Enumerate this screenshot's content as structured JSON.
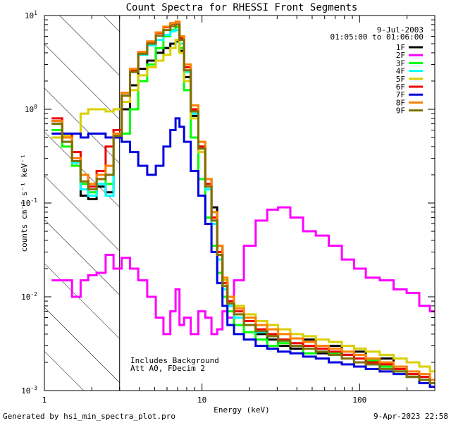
{
  "chart_data": {
    "type": "line",
    "title": "Count Spectra for RHESSI Front Segments",
    "xlabel": "Energy (keV)",
    "ylabel": "counts cm⁻² s⁻¹ keV⁻¹",
    "xscale": "log",
    "yscale": "log",
    "xlim": [
      1,
      300
    ],
    "ylim": [
      0.001,
      10
    ],
    "x_ticks": [
      {
        "value": 1,
        "label": "1"
      },
      {
        "value": 10,
        "label": "10"
      },
      {
        "value": 100,
        "label": "100"
      }
    ],
    "y_ticks": [
      {
        "value": 0.001,
        "base": "10",
        "exp": "-3"
      },
      {
        "value": 0.01,
        "base": "10",
        "exp": "-2"
      },
      {
        "value": 0.1,
        "base": "10",
        "exp": "-1"
      },
      {
        "value": 1,
        "base": "10",
        "exp": "0"
      },
      {
        "value": 10,
        "base": "10",
        "exp": "1"
      }
    ],
    "shaded_region": {
      "x_from": 1,
      "x_to": 3,
      "style": "diagonal-hatch"
    },
    "date": "9-Jul-2003",
    "time_range": "01:05:00 to 01:06:00",
    "annotations": [
      "Includes Background",
      "Att A0, FDecim 2"
    ],
    "series": [
      {
        "name": "1F",
        "color": "#000000",
        "x": [
          1.2,
          1.4,
          1.6,
          1.8,
          2.0,
          2.3,
          2.6,
          2.9,
          3.3,
          3.7,
          4.2,
          4.8,
          5.4,
          6.0,
          6.6,
          7.0,
          7.4,
          8.0,
          9.0,
          10.0,
          11.0,
          12.0,
          13.0,
          14.0,
          15.0,
          17.0,
          20.0,
          24.0,
          28.0,
          33.0,
          40.0,
          48.0,
          58.0,
          70.0,
          85.0,
          100.0,
          120.0,
          150.0,
          180.0,
          220.0,
          260.0,
          300.0
        ],
        "y": [
          0.75,
          0.5,
          0.3,
          0.12,
          0.11,
          0.15,
          0.13,
          0.5,
          1.0,
          1.8,
          2.7,
          3.3,
          4.0,
          4.5,
          5.0,
          5.3,
          4.2,
          2.2,
          0.85,
          0.4,
          0.18,
          0.09,
          0.035,
          0.015,
          0.008,
          0.006,
          0.005,
          0.004,
          0.0035,
          0.003,
          0.0028,
          0.0035,
          0.0025,
          0.003,
          0.0024,
          0.0026,
          0.002,
          0.0022,
          0.0018,
          0.0015,
          0.0013,
          0.0012
        ]
      },
      {
        "name": "2F",
        "color": "#ff00ff",
        "x": [
          1.2,
          1.4,
          1.6,
          1.8,
          2.0,
          2.3,
          2.6,
          2.9,
          3.3,
          3.7,
          4.2,
          4.8,
          5.4,
          6.0,
          6.6,
          7.0,
          7.4,
          8.0,
          9.0,
          10.0,
          11.0,
          12.0,
          13.0,
          14.0,
          15.0,
          17.0,
          20.0,
          24.0,
          28.0,
          33.0,
          40.0,
          48.0,
          58.0,
          70.0,
          85.0,
          100.0,
          120.0,
          150.0,
          180.0,
          220.0,
          260.0,
          300.0
        ],
        "y": [
          0.015,
          0.015,
          0.01,
          0.015,
          0.017,
          0.018,
          0.028,
          0.02,
          0.026,
          0.02,
          0.015,
          0.01,
          0.006,
          0.004,
          0.007,
          0.012,
          0.005,
          0.006,
          0.004,
          0.007,
          0.006,
          0.004,
          0.0045,
          0.007,
          0.006,
          0.015,
          0.035,
          0.065,
          0.085,
          0.09,
          0.07,
          0.05,
          0.045,
          0.035,
          0.025,
          0.02,
          0.016,
          0.015,
          0.012,
          0.011,
          0.008,
          0.007
        ]
      },
      {
        "name": "3F",
        "color": "#00ff00",
        "x": [
          1.2,
          1.4,
          1.6,
          1.8,
          2.0,
          2.3,
          2.6,
          2.9,
          3.3,
          3.7,
          4.2,
          4.8,
          5.4,
          6.0,
          6.6,
          7.0,
          7.4,
          8.0,
          9.0,
          10.0,
          11.0,
          12.0,
          13.0,
          14.0,
          15.0,
          17.0,
          20.0,
          24.0,
          28.0,
          33.0,
          40.0,
          48.0,
          58.0,
          70.0,
          85.0,
          100.0,
          120.0,
          150.0,
          180.0,
          220.0,
          260.0,
          300.0
        ],
        "y": [
          0.6,
          0.4,
          0.25,
          0.16,
          0.13,
          0.18,
          0.16,
          0.55,
          0.55,
          1.0,
          2.0,
          3.0,
          4.5,
          6.0,
          7.0,
          7.5,
          4.5,
          1.6,
          0.5,
          0.18,
          0.07,
          0.035,
          0.018,
          0.01,
          0.007,
          0.005,
          0.0042,
          0.0035,
          0.003,
          0.0032,
          0.003,
          0.0025,
          0.0028,
          0.0025,
          0.0022,
          0.002,
          0.0021,
          0.0018,
          0.0016,
          0.0015,
          0.0013,
          0.0012
        ]
      },
      {
        "name": "4F",
        "color": "#00ffff",
        "x": [
          1.2,
          1.4,
          1.6,
          1.8,
          2.0,
          2.3,
          2.6,
          2.9,
          3.3,
          3.7,
          4.2,
          4.8,
          5.4,
          6.0,
          6.6,
          7.0,
          7.4,
          8.0,
          9.0,
          10.0,
          11.0,
          12.0,
          13.0,
          14.0,
          15.0,
          17.0,
          20.0,
          24.0,
          28.0,
          33.0,
          40.0,
          48.0,
          58.0,
          70.0,
          85.0,
          100.0,
          120.0,
          150.0,
          180.0,
          220.0,
          260.0,
          300.0
        ],
        "y": [
          0.7,
          0.45,
          0.27,
          0.14,
          0.12,
          0.16,
          0.12,
          0.52,
          1.5,
          2.5,
          3.8,
          4.8,
          5.5,
          6.2,
          6.8,
          7.0,
          5.0,
          2.5,
          0.9,
          0.35,
          0.14,
          0.06,
          0.025,
          0.012,
          0.008,
          0.006,
          0.005,
          0.0042,
          0.0038,
          0.0034,
          0.003,
          0.0028,
          0.0026,
          0.0024,
          0.0022,
          0.002,
          0.0019,
          0.0017,
          0.0016,
          0.0014,
          0.0013,
          0.0011
        ]
      },
      {
        "name": "5F",
        "color": "#d8d000",
        "x": [
          1.2,
          1.4,
          1.6,
          1.8,
          2.0,
          2.3,
          2.6,
          2.9,
          3.3,
          3.7,
          4.2,
          4.8,
          5.4,
          6.0,
          6.6,
          7.0,
          7.4,
          8.0,
          9.0,
          10.0,
          11.0,
          12.0,
          13.0,
          14.0,
          15.0,
          17.0,
          20.0,
          24.0,
          28.0,
          33.0,
          40.0,
          48.0,
          58.0,
          70.0,
          85.0,
          100.0,
          120.0,
          150.0,
          180.0,
          220.0,
          260.0,
          300.0
        ],
        "y": [
          0.5,
          0.52,
          0.55,
          0.9,
          1.0,
          1.0,
          0.95,
          1.0,
          1.2,
          1.6,
          2.3,
          2.8,
          3.3,
          3.8,
          4.5,
          5.5,
          4.0,
          2.0,
          0.8,
          0.35,
          0.15,
          0.07,
          0.03,
          0.015,
          0.01,
          0.008,
          0.0065,
          0.0055,
          0.005,
          0.0045,
          0.004,
          0.0038,
          0.0035,
          0.0033,
          0.003,
          0.0028,
          0.0026,
          0.0024,
          0.0022,
          0.002,
          0.0018,
          0.0016
        ]
      },
      {
        "name": "6F",
        "color": "#ee0000",
        "x": [
          1.2,
          1.4,
          1.6,
          1.8,
          2.0,
          2.3,
          2.6,
          2.9,
          3.3,
          3.7,
          4.2,
          4.8,
          5.4,
          6.0,
          6.6,
          7.0,
          7.4,
          8.0,
          9.0,
          10.0,
          11.0,
          12.0,
          13.0,
          14.0,
          15.0,
          17.0,
          20.0,
          24.0,
          28.0,
          33.0,
          40.0,
          48.0,
          58.0,
          70.0,
          85.0,
          100.0,
          120.0,
          150.0,
          180.0,
          220.0,
          260.0,
          300.0
        ],
        "y": [
          0.8,
          0.55,
          0.35,
          0.2,
          0.15,
          0.22,
          0.4,
          0.6,
          1.4,
          2.6,
          4.0,
          5.2,
          6.5,
          7.5,
          8.2,
          8.5,
          5.8,
          2.8,
          1.0,
          0.4,
          0.16,
          0.07,
          0.03,
          0.014,
          0.009,
          0.007,
          0.0055,
          0.0045,
          0.004,
          0.0035,
          0.0032,
          0.003,
          0.0028,
          0.0026,
          0.0024,
          0.0022,
          0.002,
          0.0019,
          0.0017,
          0.0015,
          0.0014,
          0.0012
        ]
      },
      {
        "name": "7F",
        "color": "#0000dd",
        "x": [
          1.2,
          1.4,
          1.6,
          1.8,
          2.0,
          2.3,
          2.6,
          2.9,
          3.3,
          3.7,
          4.2,
          4.8,
          5.4,
          6.0,
          6.6,
          7.0,
          7.4,
          8.0,
          9.0,
          10.0,
          11.0,
          12.0,
          13.0,
          14.0,
          15.0,
          17.0,
          20.0,
          24.0,
          28.0,
          33.0,
          40.0,
          48.0,
          58.0,
          70.0,
          85.0,
          100.0,
          120.0,
          150.0,
          180.0,
          220.0,
          260.0,
          300.0
        ],
        "y": [
          0.55,
          0.55,
          0.55,
          0.5,
          0.55,
          0.55,
          0.5,
          0.5,
          0.45,
          0.35,
          0.25,
          0.2,
          0.25,
          0.4,
          0.6,
          0.8,
          0.65,
          0.45,
          0.22,
          0.12,
          0.06,
          0.03,
          0.014,
          0.008,
          0.005,
          0.004,
          0.0035,
          0.003,
          0.0028,
          0.0026,
          0.0025,
          0.0023,
          0.0022,
          0.002,
          0.0019,
          0.0018,
          0.0017,
          0.0016,
          0.0015,
          0.0014,
          0.0012,
          0.0011
        ]
      },
      {
        "name": "8F",
        "color": "#ff8000",
        "x": [
          1.2,
          1.4,
          1.6,
          1.8,
          2.0,
          2.3,
          2.6,
          2.9,
          3.3,
          3.7,
          4.2,
          4.8,
          5.4,
          6.0,
          6.6,
          7.0,
          7.4,
          8.0,
          9.0,
          10.0,
          11.0,
          12.0,
          13.0,
          14.0,
          15.0,
          17.0,
          20.0,
          24.0,
          28.0,
          33.0,
          40.0,
          48.0,
          58.0,
          70.0,
          85.0,
          100.0,
          120.0,
          150.0,
          180.0,
          220.0,
          260.0,
          300.0
        ],
        "y": [
          0.75,
          0.5,
          0.3,
          0.2,
          0.16,
          0.2,
          0.25,
          0.55,
          1.5,
          2.7,
          4.1,
          5.3,
          6.6,
          7.6,
          8.3,
          8.6,
          6.0,
          3.0,
          1.1,
          0.45,
          0.18,
          0.08,
          0.035,
          0.016,
          0.01,
          0.0075,
          0.006,
          0.005,
          0.0045,
          0.004,
          0.0036,
          0.0033,
          0.003,
          0.0028,
          0.0026,
          0.0024,
          0.0022,
          0.002,
          0.0018,
          0.0016,
          0.0015,
          0.0013
        ]
      },
      {
        "name": "9F",
        "color": "#807000",
        "x": [
          1.2,
          1.4,
          1.6,
          1.8,
          2.0,
          2.3,
          2.6,
          2.9,
          3.3,
          3.7,
          4.2,
          4.8,
          5.4,
          6.0,
          6.6,
          7.0,
          7.4,
          8.0,
          9.0,
          10.0,
          11.0,
          12.0,
          13.0,
          14.0,
          15.0,
          17.0,
          20.0,
          24.0,
          28.0,
          33.0,
          40.0,
          48.0,
          58.0,
          70.0,
          85.0,
          100.0,
          120.0,
          150.0,
          180.0,
          220.0,
          260.0,
          300.0
        ],
        "y": [
          0.7,
          0.45,
          0.28,
          0.17,
          0.14,
          0.18,
          0.2,
          0.52,
          1.4,
          2.5,
          3.9,
          5.0,
          6.1,
          7.0,
          7.7,
          8.0,
          5.5,
          2.6,
          0.95,
          0.38,
          0.15,
          0.065,
          0.028,
          0.013,
          0.0085,
          0.0065,
          0.005,
          0.0043,
          0.0038,
          0.0034,
          0.003,
          0.0028,
          0.0026,
          0.0024,
          0.0022,
          0.002,
          0.0019,
          0.0017,
          0.0016,
          0.0014,
          0.0013,
          0.0012
        ]
      }
    ]
  },
  "footer": {
    "left": "Generated by hsi_min_spectra_plot.pro",
    "right": "9-Apr-2023 22:58"
  }
}
